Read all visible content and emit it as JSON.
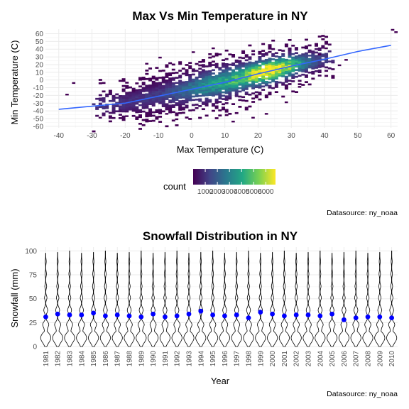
{
  "chart_data": [
    {
      "type": "heatmap",
      "title": "Max Vs Min Temperature in NY",
      "xlabel": "Max Temperature (C)",
      "ylabel": "Min Temperature (C)",
      "xlim": [
        -44,
        62
      ],
      "ylim": [
        -62,
        66
      ],
      "x_ticks": [
        -40,
        -30,
        -20,
        -10,
        0,
        10,
        20,
        30,
        40,
        50,
        60
      ],
      "y_ticks": [
        -60,
        -50,
        -40,
        -30,
        -20,
        -10,
        0,
        10,
        20,
        30,
        40,
        50,
        60
      ],
      "grid": true,
      "colorscale": "viridis",
      "legend": {
        "title": "count",
        "placement": "bottom",
        "ticks": [
          1000,
          2000,
          3000,
          4000,
          5000,
          6000
        ],
        "range": [
          0,
          6800
        ]
      },
      "trend_line": {
        "color": "#3366ff",
        "points": [
          [
            -40,
            -38
          ],
          [
            -20,
            -30
          ],
          [
            0,
            -12
          ],
          [
            10,
            -3
          ],
          [
            20,
            8
          ],
          [
            30,
            18
          ],
          [
            40,
            27
          ],
          [
            50,
            37
          ],
          [
            60,
            45
          ]
        ]
      },
      "source": "Datasource: ny_noaa"
    },
    {
      "type": "violin",
      "title": "Snowfall Distribution in NY",
      "xlabel": "Year",
      "ylabel": "Snowfall (mm)",
      "ylim": [
        0,
        104
      ],
      "y_ticks": [
        0,
        25,
        50,
        75,
        100
      ],
      "grid": true,
      "categories": [
        "1981",
        "1982",
        "1983",
        "1984",
        "1985",
        "1986",
        "1987",
        "1988",
        "1989",
        "1990",
        "1991",
        "1992",
        "1993",
        "1994",
        "1995",
        "1996",
        "1997",
        "1998",
        "1999",
        "2000",
        "2001",
        "2002",
        "2003",
        "2004",
        "2005",
        "2006",
        "2007",
        "2008",
        "2009",
        "2010"
      ],
      "median_color": "#0000ff",
      "medians": [
        31,
        34,
        33,
        33,
        35,
        32,
        33,
        32,
        31,
        34,
        31,
        32,
        34,
        37,
        33,
        32,
        33,
        30,
        36,
        34,
        32,
        33,
        33,
        32,
        34,
        28,
        30,
        31,
        31,
        30
      ],
      "source": "Datasource: ny_noaa"
    }
  ]
}
